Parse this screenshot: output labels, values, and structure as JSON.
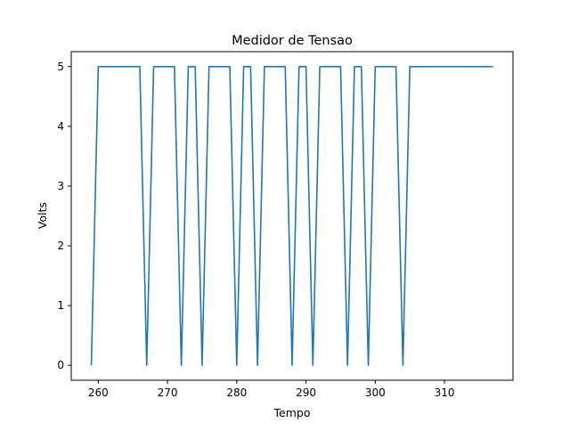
{
  "chart_data": {
    "type": "line",
    "title": "Medidor de Tensao",
    "xlabel": "Tempo",
    "ylabel": "Volts",
    "xlim": [
      256.1,
      319.9
    ],
    "ylim": [
      -0.25,
      5.25
    ],
    "xticks": [
      260,
      270,
      280,
      290,
      300,
      310
    ],
    "yticks": [
      0,
      1,
      2,
      3,
      4,
      5
    ],
    "grid": false,
    "series": [
      {
        "color": "#1f77b4",
        "x": [
          259,
          260,
          261,
          262,
          263,
          264,
          265,
          266,
          267,
          268,
          269,
          270,
          271,
          272,
          273,
          274,
          275,
          276,
          277,
          278,
          279,
          280,
          281,
          282,
          283,
          284,
          285,
          286,
          287,
          288,
          289,
          290,
          291,
          292,
          293,
          294,
          295,
          296,
          297,
          298,
          299,
          300,
          301,
          302,
          303,
          304,
          305,
          306,
          307,
          308,
          309,
          310,
          311,
          312,
          313,
          314,
          315,
          316,
          317
        ],
        "y": [
          0,
          5,
          5,
          5,
          5,
          5,
          5,
          5,
          0,
          5,
          5,
          5,
          5,
          0,
          5,
          5,
          0,
          5,
          5,
          5,
          5,
          0,
          5,
          5,
          0,
          5,
          5,
          5,
          5,
          0,
          5,
          5,
          0,
          5,
          5,
          5,
          5,
          0,
          5,
          5,
          0,
          5,
          5,
          5,
          5,
          0,
          5,
          5,
          5,
          5,
          5,
          5,
          5,
          5,
          5,
          5,
          5,
          5,
          5
        ]
      }
    ]
  }
}
